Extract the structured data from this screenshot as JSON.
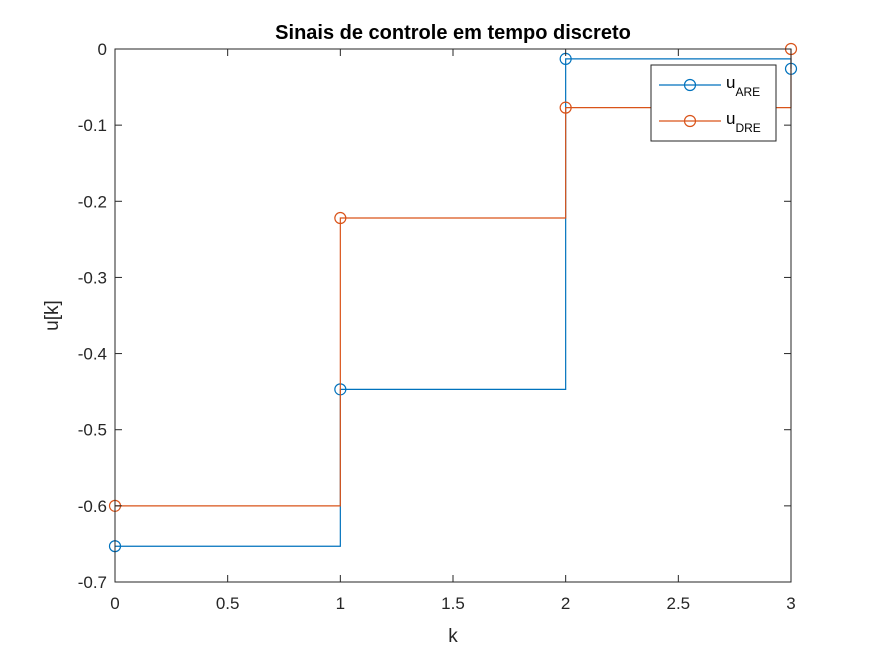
{
  "chart_data": {
    "type": "line",
    "style": "stairs",
    "title": "Sinais de controle em tempo discreto",
    "xlabel": "k",
    "ylabel": "u[k]",
    "xlim": [
      0,
      3
    ],
    "ylim": [
      -0.7,
      0
    ],
    "xticks": [
      0,
      0.5,
      1,
      1.5,
      2,
      2.5,
      3
    ],
    "xtick_labels": [
      "0",
      "0.5",
      "1",
      "1.5",
      "2",
      "2.5",
      "3"
    ],
    "yticks": [
      0,
      -0.1,
      -0.2,
      -0.3,
      -0.4,
      -0.5,
      -0.6,
      -0.7
    ],
    "ytick_labels": [
      "0",
      "-0.1",
      "-0.2",
      "-0.3",
      "-0.4",
      "-0.5",
      "-0.6",
      "-0.7"
    ],
    "grid": false,
    "legend_position": "top-right",
    "x": [
      0,
      1,
      2,
      3
    ],
    "series": [
      {
        "name": "u_ARE",
        "name_main": "u",
        "name_sub": "ARE",
        "color": "#0072BD",
        "marker": "circle",
        "values": [
          -0.653,
          -0.447,
          -0.013,
          -0.026
        ]
      },
      {
        "name": "u_DRE",
        "name_main": "u",
        "name_sub": "DRE",
        "color": "#D95319",
        "marker": "circle",
        "values": [
          -0.6,
          -0.222,
          -0.077,
          0.0
        ]
      }
    ]
  }
}
